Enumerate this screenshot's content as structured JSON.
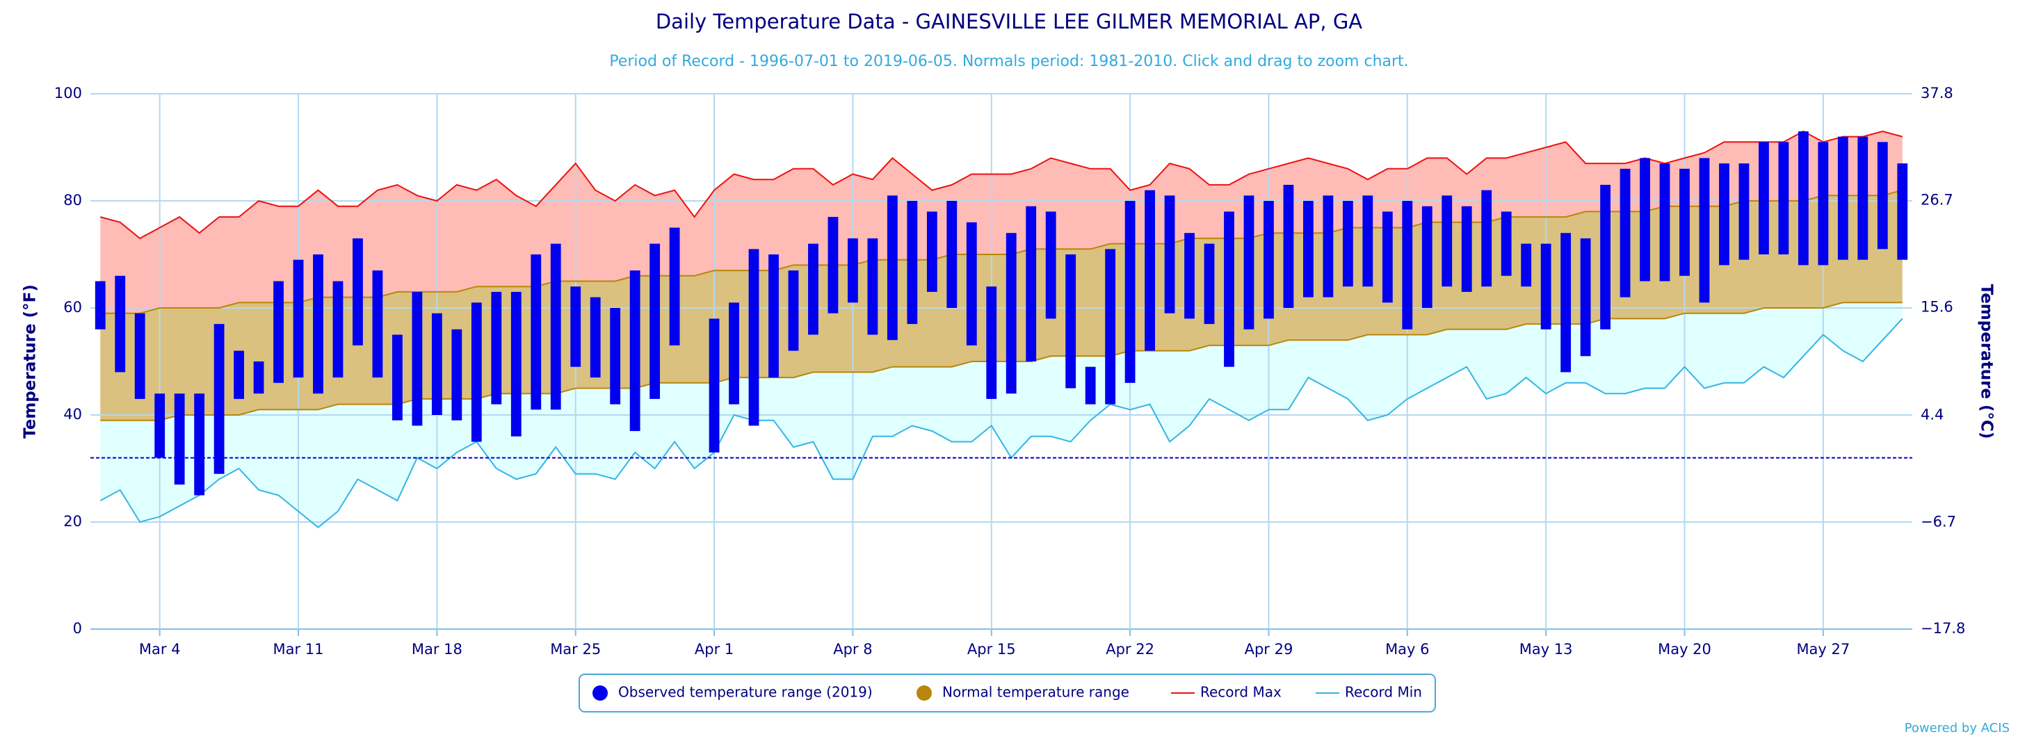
{
  "chart_data": {
    "type": "temperature-range",
    "title": "Daily Temperature Data - GAINESVILLE LEE GILMER MEMORIAL AP, GA",
    "subtitle": "Period of Record - 1996-07-01 to 2019-06-05. Normals period: 1981-2010. Click and drag to zoom chart.",
    "y_label": "Temperature (°F)",
    "y2_label": "Temperature (°C)",
    "credit": "Powered by ACIS",
    "categories": [
      null,
      null,
      null,
      "Mar 4",
      null,
      null,
      null,
      null,
      null,
      null,
      "Mar 11",
      null,
      null,
      null,
      null,
      null,
      null,
      "Mar 18",
      null,
      null,
      null,
      null,
      null,
      null,
      "Mar 25",
      null,
      null,
      null,
      null,
      null,
      null,
      "Apr 1",
      null,
      null,
      null,
      null,
      null,
      null,
      "Apr 8",
      null,
      null,
      null,
      null,
      null,
      null,
      "Apr 15",
      null,
      null,
      null,
      null,
      null,
      null,
      "Apr 22",
      null,
      null,
      null,
      null,
      null,
      null,
      "Apr 29",
      null,
      null,
      null,
      null,
      null,
      null,
      "May 6",
      null,
      null,
      null,
      null,
      null,
      null,
      "May 13",
      null,
      null,
      null,
      null,
      null,
      null,
      "May 20",
      null,
      null,
      null,
      null,
      null,
      null,
      "May 27",
      null,
      null,
      null,
      null
    ],
    "ylim": [
      0,
      100
    ],
    "yticks": [
      0,
      20,
      40,
      60,
      80,
      100
    ],
    "y2lim": [
      -17.8,
      37.8
    ],
    "y2ticks": [
      {
        "value": -17.8,
        "label": "−17.8"
      },
      {
        "value": -6.7,
        "label": "−6.7"
      },
      4.4,
      15.6,
      26.7,
      37.8
    ],
    "grid": true,
    "freeze_line": 32,
    "series": [
      {
        "name": "Observed temperature range (2019)",
        "type": "columnrange",
        "color": "#0000ee",
        "high": [
          65,
          66,
          59,
          44,
          44,
          44,
          57,
          52,
          50,
          65,
          69,
          70,
          65,
          73,
          67,
          55,
          63,
          59,
          56,
          61,
          63,
          63,
          70,
          72,
          64,
          62,
          60,
          67,
          72,
          75,
          null,
          58,
          61,
          71,
          70,
          67,
          72,
          77,
          73,
          73,
          81,
          80,
          78,
          80,
          76,
          64,
          74,
          79,
          78,
          70,
          49,
          71,
          80,
          82,
          81,
          74,
          72,
          78,
          81,
          80,
          83,
          80,
          81,
          80,
          81,
          78,
          80,
          79,
          81,
          79,
          82,
          78,
          72,
          72,
          74,
          73,
          83,
          86,
          88,
          87,
          86,
          88,
          87,
          87,
          91,
          91,
          93,
          91,
          92,
          92,
          91,
          87
        ],
        "low": [
          56,
          48,
          43,
          32,
          27,
          25,
          29,
          43,
          44,
          46,
          47,
          44,
          47,
          53,
          47,
          39,
          38,
          40,
          39,
          35,
          42,
          36,
          41,
          41,
          49,
          47,
          42,
          37,
          43,
          53,
          null,
          33,
          42,
          38,
          47,
          52,
          55,
          59,
          61,
          55,
          54,
          57,
          63,
          60,
          53,
          43,
          44,
          50,
          58,
          45,
          42,
          42,
          46,
          52,
          59,
          58,
          57,
          49,
          56,
          58,
          60,
          62,
          62,
          64,
          64,
          61,
          56,
          60,
          64,
          63,
          64,
          66,
          64,
          56,
          48,
          51,
          56,
          62,
          65,
          65,
          66,
          61,
          68,
          69,
          70,
          70,
          68,
          68,
          69,
          69,
          71,
          69
        ]
      },
      {
        "name": "Normal temperature range",
        "type": "arearange",
        "color": "#b8860b",
        "fill": "#dbc17f",
        "high": [
          59,
          59,
          59,
          60,
          60,
          60,
          60,
          61,
          61,
          61,
          61,
          62,
          62,
          62,
          62,
          63,
          63,
          63,
          63,
          64,
          64,
          64,
          64,
          65,
          65,
          65,
          65,
          66,
          66,
          66,
          66,
          67,
          67,
          67,
          67,
          68,
          68,
          68,
          68,
          69,
          69,
          69,
          69,
          70,
          70,
          70,
          70,
          71,
          71,
          71,
          71,
          72,
          72,
          72,
          72,
          73,
          73,
          73,
          73,
          74,
          74,
          74,
          74,
          75,
          75,
          75,
          75,
          76,
          76,
          76,
          76,
          77,
          77,
          77,
          77,
          78,
          78,
          78,
          78,
          79,
          79,
          79,
          79,
          80,
          80,
          80,
          80,
          81,
          81,
          81,
          81,
          82
        ],
        "low": [
          39,
          39,
          39,
          39,
          40,
          40,
          40,
          40,
          41,
          41,
          41,
          41,
          42,
          42,
          42,
          42,
          43,
          43,
          43,
          43,
          44,
          44,
          44,
          44,
          45,
          45,
          45,
          45,
          46,
          46,
          46,
          46,
          47,
          47,
          47,
          47,
          48,
          48,
          48,
          48,
          49,
          49,
          49,
          49,
          50,
          50,
          50,
          50,
          51,
          51,
          51,
          51,
          52,
          52,
          52,
          52,
          53,
          53,
          53,
          53,
          54,
          54,
          54,
          54,
          55,
          55,
          55,
          55,
          56,
          56,
          56,
          56,
          57,
          57,
          57,
          57,
          58,
          58,
          58,
          58,
          59,
          59,
          59,
          59,
          60,
          60,
          60,
          60,
          61,
          61,
          61,
          61
        ]
      },
      {
        "name": "Record Max",
        "type": "line",
        "color": "#ee1111",
        "fill": "#ffbbb5",
        "values": [
          77,
          76,
          73,
          75,
          77,
          74,
          77,
          77,
          80,
          79,
          79,
          82,
          79,
          79,
          82,
          83,
          81,
          80,
          83,
          82,
          84,
          81,
          79,
          83,
          87,
          82,
          80,
          83,
          81,
          82,
          77,
          82,
          85,
          84,
          84,
          86,
          86,
          83,
          85,
          84,
          88,
          85,
          82,
          83,
          85,
          85,
          85,
          86,
          88,
          87,
          86,
          86,
          82,
          83,
          87,
          86,
          83,
          83,
          85,
          86,
          87,
          88,
          87,
          86,
          84,
          86,
          86,
          88,
          88,
          85,
          88,
          88,
          89,
          90,
          91,
          87,
          87,
          87,
          88,
          87,
          88,
          89,
          91,
          91,
          91,
          91,
          93,
          91,
          92,
          92,
          93,
          92
        ]
      },
      {
        "name": "Record Min",
        "type": "line",
        "color": "#33b5e5",
        "fill": "#e0ffff",
        "values": [
          24,
          26,
          20,
          21,
          23,
          25,
          28,
          30,
          26,
          25,
          22,
          19,
          22,
          28,
          26,
          24,
          32,
          30,
          33,
          35,
          30,
          28,
          29,
          34,
          29,
          29,
          28,
          33,
          30,
          35,
          30,
          33,
          40,
          39,
          39,
          34,
          35,
          28,
          28,
          36,
          36,
          38,
          37,
          35,
          35,
          38,
          32,
          36,
          36,
          35,
          39,
          42,
          41,
          42,
          35,
          38,
          43,
          41,
          39,
          41,
          41,
          47,
          45,
          43,
          39,
          40,
          43,
          45,
          47,
          49,
          43,
          44,
          47,
          44,
          46,
          46,
          44,
          44,
          45,
          45,
          49,
          45,
          46,
          46,
          49,
          47,
          51,
          55,
          52,
          50,
          54,
          58
        ]
      }
    ]
  }
}
